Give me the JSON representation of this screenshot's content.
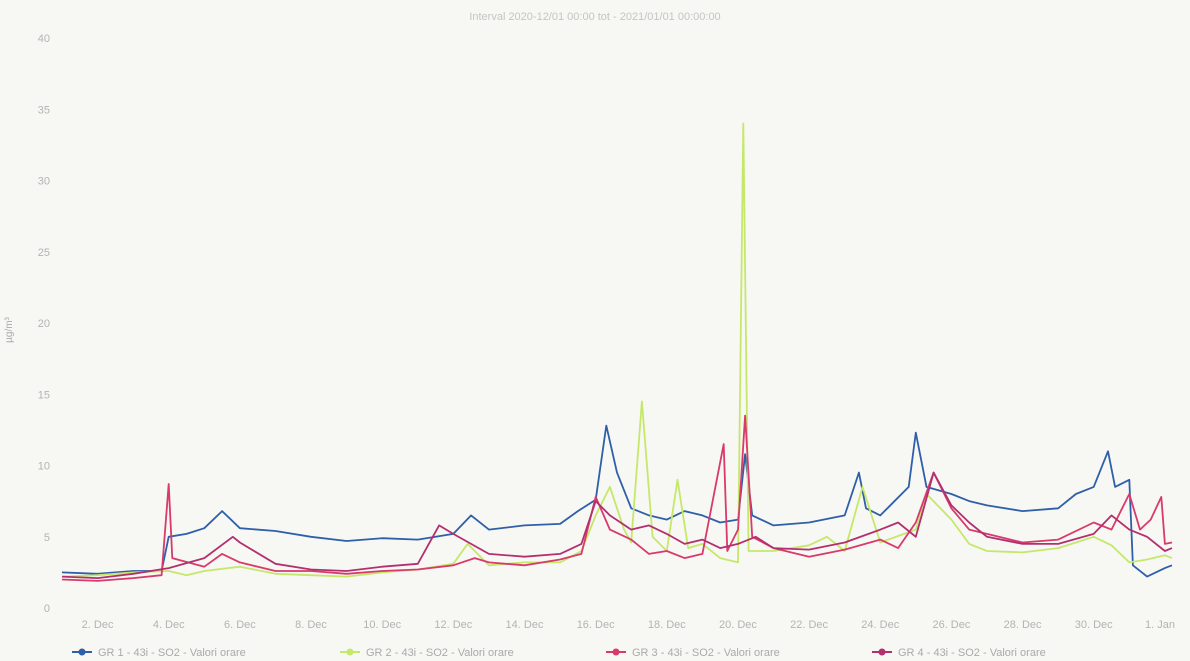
{
  "chart_data": {
    "type": "line",
    "title": "Interval 2020-12/01 00:00 tot - 2021/01/01 00:00:00",
    "ylabel": "µg/m³",
    "xlabel": "",
    "ylim": [
      0,
      40
    ],
    "yticks": [
      0,
      5,
      10,
      15,
      20,
      25,
      30,
      35,
      40
    ],
    "x_ticks": [
      "2. Dec",
      "4. Dec",
      "6. Dec",
      "8. Dec",
      "10. Dec",
      "12. Dec",
      "14. Dec",
      "16. Dec",
      "18. Dec",
      "20. Dec",
      "22. Dec",
      "24. Dec",
      "26. Dec",
      "28. Dec",
      "30. Dec",
      "1. Jan"
    ],
    "x_tick_days": [
      2,
      4,
      6,
      8,
      10,
      12,
      14,
      16,
      18,
      20,
      22,
      24,
      26,
      28,
      30,
      32
    ],
    "xlim_days": [
      1,
      32.2
    ],
    "grid": false,
    "legend_position": "bottom",
    "series": [
      {
        "name": "GR 1 - 43i - SO2 - Valori orare",
        "color": "#2e5fa8",
        "points": [
          [
            1,
            2.5
          ],
          [
            2,
            2.4
          ],
          [
            3,
            2.6
          ],
          [
            3.8,
            2.6
          ],
          [
            4,
            5.0
          ],
          [
            4.5,
            5.2
          ],
          [
            5,
            5.6
          ],
          [
            5.5,
            6.8
          ],
          [
            6,
            5.6
          ],
          [
            7,
            5.4
          ],
          [
            8,
            5.0
          ],
          [
            9,
            4.7
          ],
          [
            10,
            4.9
          ],
          [
            11,
            4.8
          ],
          [
            12,
            5.2
          ],
          [
            12.5,
            6.5
          ],
          [
            13,
            5.5
          ],
          [
            14,
            5.8
          ],
          [
            15,
            5.9
          ],
          [
            15.5,
            6.8
          ],
          [
            16,
            7.6
          ],
          [
            16.3,
            12.8
          ],
          [
            16.6,
            9.5
          ],
          [
            17,
            7.0
          ],
          [
            17.5,
            6.5
          ],
          [
            18,
            6.2
          ],
          [
            18.5,
            6.8
          ],
          [
            19,
            6.5
          ],
          [
            19.5,
            6.0
          ],
          [
            20,
            6.2
          ],
          [
            20.2,
            10.8
          ],
          [
            20.4,
            6.5
          ],
          [
            21,
            5.8
          ],
          [
            22,
            6.0
          ],
          [
            23,
            6.5
          ],
          [
            23.4,
            9.5
          ],
          [
            23.6,
            7.0
          ],
          [
            24,
            6.5
          ],
          [
            24.8,
            8.5
          ],
          [
            25,
            12.3
          ],
          [
            25.3,
            8.5
          ],
          [
            26,
            8.0
          ],
          [
            26.5,
            7.5
          ],
          [
            27,
            7.2
          ],
          [
            28,
            6.8
          ],
          [
            29,
            7.0
          ],
          [
            29.5,
            8.0
          ],
          [
            30,
            8.5
          ],
          [
            30.4,
            11.0
          ],
          [
            30.6,
            8.5
          ],
          [
            31,
            9.0
          ],
          [
            31.1,
            3.0
          ],
          [
            31.5,
            2.2
          ],
          [
            32,
            2.8
          ],
          [
            32.2,
            3.0
          ]
        ]
      },
      {
        "name": "GR 2 - 43i - SO2 - Valori orare",
        "color": "#c5e86a",
        "points": [
          [
            1,
            2.2
          ],
          [
            2,
            2.3
          ],
          [
            3,
            2.5
          ],
          [
            4,
            2.6
          ],
          [
            4.5,
            2.3
          ],
          [
            5,
            2.6
          ],
          [
            6,
            2.9
          ],
          [
            7,
            2.4
          ],
          [
            8,
            2.3
          ],
          [
            9,
            2.2
          ],
          [
            10,
            2.5
          ],
          [
            11,
            2.7
          ],
          [
            12,
            3.1
          ],
          [
            12.4,
            4.5
          ],
          [
            13,
            3.0
          ],
          [
            14,
            3.2
          ],
          [
            15,
            3.2
          ],
          [
            15.6,
            4.0
          ],
          [
            16,
            6.5
          ],
          [
            16.4,
            8.5
          ],
          [
            16.8,
            5.5
          ],
          [
            17,
            4.6
          ],
          [
            17.3,
            14.5
          ],
          [
            17.6,
            5.0
          ],
          [
            18,
            4.0
          ],
          [
            18.3,
            9.0
          ],
          [
            18.6,
            4.2
          ],
          [
            19,
            4.5
          ],
          [
            19.5,
            3.5
          ],
          [
            20,
            3.2
          ],
          [
            20.15,
            34.0
          ],
          [
            20.3,
            4.0
          ],
          [
            21,
            4.0
          ],
          [
            22,
            4.4
          ],
          [
            22.5,
            5.0
          ],
          [
            23,
            4.0
          ],
          [
            23.5,
            8.5
          ],
          [
            24,
            4.6
          ],
          [
            25,
            5.5
          ],
          [
            25.3,
            8.0
          ],
          [
            26,
            6.2
          ],
          [
            26.5,
            4.5
          ],
          [
            27,
            4.0
          ],
          [
            28,
            3.9
          ],
          [
            29,
            4.2
          ],
          [
            30,
            5.0
          ],
          [
            30.5,
            4.4
          ],
          [
            31,
            3.2
          ],
          [
            31.5,
            3.4
          ],
          [
            32,
            3.7
          ],
          [
            32.2,
            3.5
          ]
        ]
      },
      {
        "name": "GR 3 - 43i - SO2 - Valori orare",
        "color": "#d83a6b",
        "points": [
          [
            1,
            2.0
          ],
          [
            2,
            1.9
          ],
          [
            3,
            2.1
          ],
          [
            3.8,
            2.3
          ],
          [
            4,
            8.7
          ],
          [
            4.1,
            3.5
          ],
          [
            5,
            2.9
          ],
          [
            5.5,
            3.8
          ],
          [
            6,
            3.2
          ],
          [
            7,
            2.6
          ],
          [
            8,
            2.6
          ],
          [
            9,
            2.4
          ],
          [
            10,
            2.6
          ],
          [
            11,
            2.7
          ],
          [
            12,
            3.0
          ],
          [
            12.6,
            3.5
          ],
          [
            13,
            3.2
          ],
          [
            14,
            3.0
          ],
          [
            15,
            3.4
          ],
          [
            15.6,
            3.8
          ],
          [
            16,
            7.8
          ],
          [
            16.4,
            5.5
          ],
          [
            17,
            4.8
          ],
          [
            17.5,
            3.8
          ],
          [
            18,
            4.0
          ],
          [
            18.5,
            3.5
          ],
          [
            19,
            3.8
          ],
          [
            19.6,
            11.5
          ],
          [
            19.7,
            4.0
          ],
          [
            20,
            5.5
          ],
          [
            20.2,
            13.5
          ],
          [
            20.4,
            5.0
          ],
          [
            21,
            4.2
          ],
          [
            22,
            3.6
          ],
          [
            23,
            4.1
          ],
          [
            24,
            4.8
          ],
          [
            24.5,
            4.2
          ],
          [
            25,
            6.0
          ],
          [
            25.5,
            9.5
          ],
          [
            26,
            7.0
          ],
          [
            26.5,
            5.5
          ],
          [
            27,
            5.2
          ],
          [
            28,
            4.6
          ],
          [
            29,
            4.8
          ],
          [
            30,
            6.0
          ],
          [
            30.5,
            5.5
          ],
          [
            31,
            8.0
          ],
          [
            31.3,
            5.5
          ],
          [
            31.6,
            6.2
          ],
          [
            31.9,
            7.8
          ],
          [
            32,
            4.5
          ],
          [
            32.2,
            4.6
          ]
        ]
      },
      {
        "name": "GR 4 - 43i - SO2 - Valori orare",
        "color": "#b3306e",
        "points": [
          [
            1,
            2.2
          ],
          [
            2,
            2.1
          ],
          [
            3,
            2.4
          ],
          [
            4,
            2.8
          ],
          [
            5,
            3.5
          ],
          [
            5.8,
            5.0
          ],
          [
            6,
            4.6
          ],
          [
            7,
            3.1
          ],
          [
            8,
            2.7
          ],
          [
            9,
            2.6
          ],
          [
            10,
            2.9
          ],
          [
            11,
            3.1
          ],
          [
            11.6,
            5.8
          ],
          [
            12,
            5.2
          ],
          [
            12.5,
            4.5
          ],
          [
            13,
            3.8
          ],
          [
            14,
            3.6
          ],
          [
            15,
            3.8
          ],
          [
            15.6,
            4.5
          ],
          [
            16,
            7.5
          ],
          [
            16.4,
            6.5
          ],
          [
            17,
            5.5
          ],
          [
            17.5,
            5.8
          ],
          [
            18,
            5.2
          ],
          [
            18.5,
            4.5
          ],
          [
            19,
            4.8
          ],
          [
            19.5,
            4.2
          ],
          [
            20,
            4.5
          ],
          [
            20.5,
            5.0
          ],
          [
            21,
            4.2
          ],
          [
            22,
            4.1
          ],
          [
            23,
            4.6
          ],
          [
            24,
            5.5
          ],
          [
            24.5,
            6.0
          ],
          [
            25,
            5.0
          ],
          [
            25.5,
            9.5
          ],
          [
            26,
            7.2
          ],
          [
            26.5,
            6.0
          ],
          [
            27,
            5.0
          ],
          [
            28,
            4.5
          ],
          [
            29,
            4.5
          ],
          [
            30,
            5.2
          ],
          [
            30.5,
            6.5
          ],
          [
            31,
            5.5
          ],
          [
            31.5,
            5.0
          ],
          [
            32,
            4.0
          ],
          [
            32.2,
            4.2
          ]
        ]
      }
    ]
  }
}
